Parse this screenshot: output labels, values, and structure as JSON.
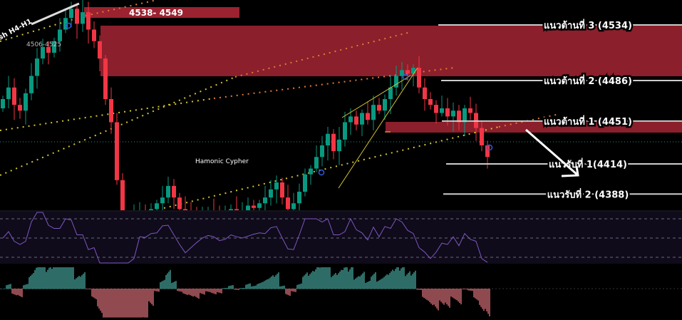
{
  "chart_data": {
    "type": "candlestick",
    "title": "",
    "colors": {
      "up": "#089981",
      "down": "#f23645",
      "zone": "#8b1f2b",
      "zone_label": "#9b2230",
      "osc_line": "#7e57c2",
      "osc_bg": "#0f0b1a"
    },
    "price_range": [
      4374,
      4555
    ],
    "closes": [
      4470,
      4480,
      4465,
      4460,
      4475,
      4490,
      4505,
      4515,
      4510,
      4520,
      4530,
      4540,
      4548,
      4535,
      4545,
      4530,
      4520,
      4505,
      4470,
      4450,
      4400,
      4370,
      4365,
      4368,
      4372,
      4366,
      4375,
      4380,
      4385,
      4395,
      4385,
      4375,
      4372,
      4370,
      4368,
      4372,
      4374,
      4370,
      4368,
      4372,
      4375,
      4370,
      4372,
      4378,
      4376,
      4380,
      4385,
      4392,
      4398,
      4385,
      4375,
      4380,
      4390,
      4405,
      4410,
      4420,
      4430,
      4440,
      4425,
      4435,
      4450,
      4455,
      4448,
      4458,
      4452,
      4465,
      4460,
      4470,
      4480,
      4490,
      4495,
      4492,
      4497,
      4480,
      4470,
      4465,
      4458,
      4462,
      4455,
      4460,
      4450,
      4462,
      4458,
      4445,
      4430,
      4420
    ],
    "levels": [
      {
        "label": "แนวต้านที่ 3 (4534)",
        "price": 4534
      },
      {
        "label": "แนวต้านที่ 2 (4486)",
        "price": 4486
      },
      {
        "label": "แนวต้านที่ 1 (4451)",
        "price": 4451
      },
      {
        "label": "แนวรับที่ 1(4414)",
        "price": 4414
      },
      {
        "label": "แนวรับที่ 2 (4388)",
        "price": 4388
      }
    ],
    "zones": [
      {
        "label": "4538- 4549",
        "from": 4538,
        "to": 4549
      },
      {
        "from": 4490,
        "to": 4534
      },
      {
        "from": 4442,
        "to": 4451
      }
    ],
    "annotations": [
      "4506-4525",
      "Hamonic Cypher",
      "sh H4-H1"
    ]
  }
}
